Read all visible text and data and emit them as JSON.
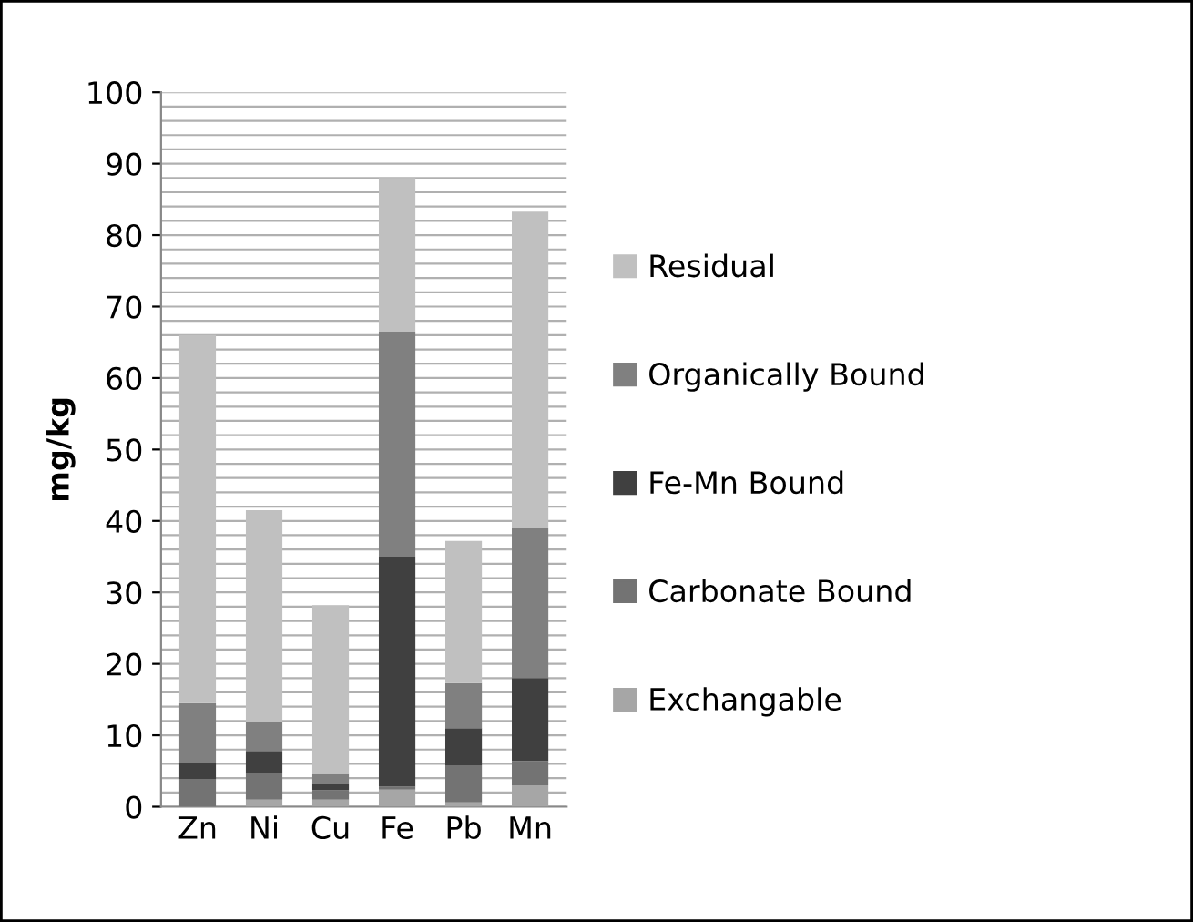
{
  "chart_data": {
    "type": "bar",
    "stacked": true,
    "ylabel": "mg/kg",
    "categories": [
      "Zn",
      "Ni",
      "Cu",
      "Fe",
      "Pb",
      "Mn"
    ],
    "series": [
      {
        "name": "Exchangable",
        "color": "#a6a6a6",
        "values": [
          null,
          1.0,
          1.0,
          2.4,
          0.6,
          3.0
        ]
      },
      {
        "name": "Carbonate Bound",
        "color": "#737373",
        "values": [
          3.9,
          3.7,
          1.3,
          0.4,
          5.2,
          3.4
        ]
      },
      {
        "name": "Fe-Mn Bound",
        "color": "#404040",
        "values": [
          2.2,
          3.1,
          0.9,
          32.2,
          5.2,
          11.6
        ]
      },
      {
        "name": "Organically Bound",
        "color": "#808080",
        "values": [
          8.4,
          4.1,
          1.4,
          31.5,
          6.3,
          21.0
        ]
      },
      {
        "name": "Residual",
        "color": "#c0c0c0",
        "values": [
          51.5,
          29.6,
          23.6,
          21.5,
          19.9,
          44.3
        ]
      }
    ],
    "ylim": [
      0,
      100
    ],
    "yticks": [
      0,
      {
        "value": 2,
        "label": null
      },
      {
        "value": 4,
        "label": null
      },
      {
        "value": 6,
        "label": null
      },
      {
        "value": 8,
        "label": null
      },
      10,
      {
        "value": 12,
        "label": null
      },
      {
        "value": 14,
        "label": null
      },
      {
        "value": 16,
        "label": null
      },
      {
        "value": 18,
        "label": null
      },
      20,
      {
        "value": 22,
        "label": null
      },
      {
        "value": 24,
        "label": null
      },
      {
        "value": 26,
        "label": null
      },
      {
        "value": 28,
        "label": null
      },
      30,
      {
        "value": 32,
        "label": null
      },
      {
        "value": 34,
        "label": null
      },
      {
        "value": 36,
        "label": null
      },
      {
        "value": 38,
        "label": null
      },
      40,
      {
        "value": 42,
        "label": null
      },
      {
        "value": 44,
        "label": null
      },
      {
        "value": 46,
        "label": null
      },
      {
        "value": 48,
        "label": null
      },
      50,
      {
        "value": 52,
        "label": null
      },
      {
        "value": 54,
        "label": null
      },
      {
        "value": 56,
        "label": null
      },
      {
        "value": 58,
        "label": null
      },
      60,
      {
        "value": 62,
        "label": null
      },
      {
        "value": 64,
        "label": null
      },
      {
        "value": 66,
        "label": null
      },
      {
        "value": 68,
        "label": null
      },
      70,
      {
        "value": 72,
        "label": null
      },
      {
        "value": 74,
        "label": null
      },
      {
        "value": 76,
        "label": null
      },
      {
        "value": 78,
        "label": null
      },
      80,
      {
        "value": 82,
        "label": null
      },
      {
        "value": 84,
        "label": null
      },
      {
        "value": 86,
        "label": null
      },
      {
        "value": 88,
        "label": null
      },
      90,
      {
        "value": 92,
        "label": null
      },
      {
        "value": 94,
        "label": null
      },
      {
        "value": 96,
        "label": null
      },
      {
        "value": 98,
        "label": null
      },
      100
    ],
    "grid": "y",
    "legend": "right"
  }
}
